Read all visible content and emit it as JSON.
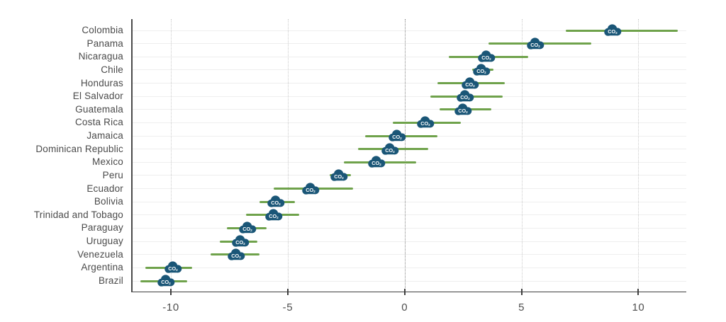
{
  "chart_data": {
    "type": "scatter",
    "subtype": "horizontal-dot-plot-with-interval-lines",
    "title": "",
    "xlabel": "",
    "ylabel": "",
    "xlim": [
      -11.7,
      12.05
    ],
    "xticks": [
      -10,
      -5,
      0,
      5,
      10
    ],
    "xtick_labels": [
      "-10",
      "-5",
      "0",
      "5",
      "10"
    ],
    "grid": {
      "row_lines": true,
      "tick_lines": "dotted-light",
      "zero_line": "dotted-dark"
    },
    "legend": "none",
    "marker": {
      "type": "co2-cloud-icon",
      "label_main": "CO",
      "label_sub": "2"
    },
    "colors": {
      "marker_fill": "#1a5677",
      "marker_text": "#ffffff",
      "interval": "#6fa24b",
      "axis": "#404040",
      "tick_label": "#4f4f4f",
      "category_label": "#4a4a4a",
      "row_gridline": "#eeeeee",
      "tick_gridline": "#cbcbcb",
      "zero_gridline": "#878787",
      "background": "#ffffff"
    },
    "points": [
      {
        "label": "Colombia",
        "value": 8.9,
        "low": 6.9,
        "high": 11.7
      },
      {
        "label": "Panama",
        "value": 5.6,
        "low": 3.6,
        "high": 8.0
      },
      {
        "label": "Nicaragua",
        "value": 3.5,
        "low": 1.9,
        "high": 5.3
      },
      {
        "label": "Chile",
        "value": 3.3,
        "low": 2.9,
        "high": 3.8
      },
      {
        "label": "Honduras",
        "value": 2.8,
        "low": 1.4,
        "high": 4.3
      },
      {
        "label": "El Salvador",
        "value": 2.6,
        "low": 1.1,
        "high": 4.2
      },
      {
        "label": "Guatemala",
        "value": 2.5,
        "low": 1.5,
        "high": 3.7
      },
      {
        "label": "Costa Rica",
        "value": 0.9,
        "low": -0.5,
        "high": 2.4
      },
      {
        "label": "Jamaica",
        "value": -0.3,
        "low": -1.7,
        "high": 1.4
      },
      {
        "label": "Dominican Republic",
        "value": -0.6,
        "low": -2.0,
        "high": 1.0
      },
      {
        "label": "Mexico",
        "value": -1.2,
        "low": -2.6,
        "high": 0.5
      },
      {
        "label": "Peru",
        "value": -2.8,
        "low": -3.2,
        "high": -2.3
      },
      {
        "label": "Ecuador",
        "value": -4.0,
        "low": -5.6,
        "high": -2.2
      },
      {
        "label": "Bolivia",
        "value": -5.5,
        "low": -6.2,
        "high": -4.7
      },
      {
        "label": "Trinidad and Tobago",
        "value": -5.6,
        "low": -6.8,
        "high": -4.5
      },
      {
        "label": "Paraguay",
        "value": -6.7,
        "low": -7.6,
        "high": -5.9
      },
      {
        "label": "Uruguay",
        "value": -7.0,
        "low": -7.9,
        "high": -6.3
      },
      {
        "label": "Venezuela",
        "value": -7.2,
        "low": -8.3,
        "high": -6.2
      },
      {
        "label": "Argentina",
        "value": -9.9,
        "low": -11.1,
        "high": -9.1
      },
      {
        "label": "Brazil",
        "value": -10.2,
        "low": -11.3,
        "high": -9.3
      }
    ]
  }
}
